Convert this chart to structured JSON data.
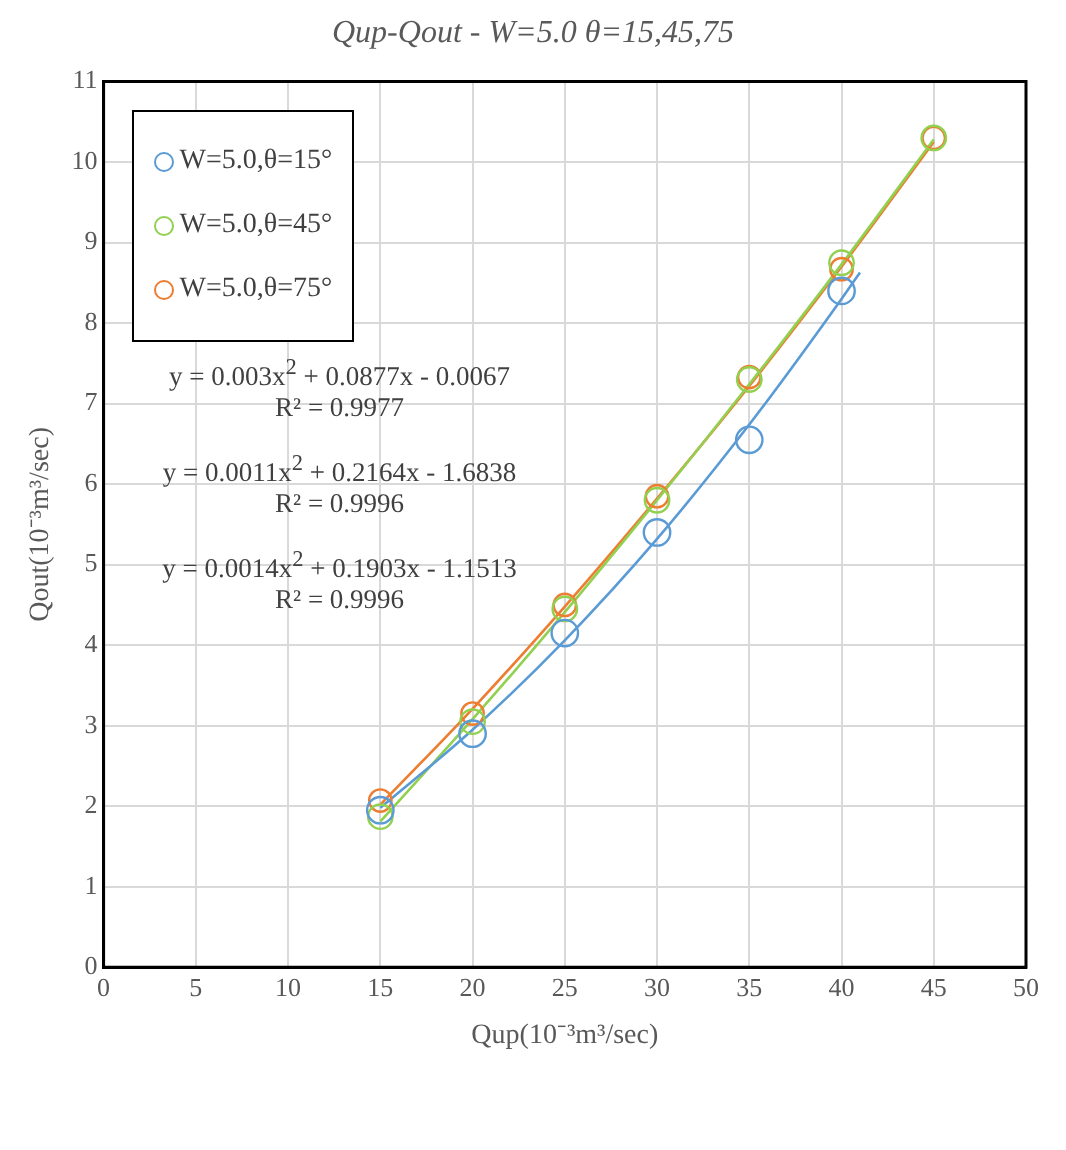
{
  "chart_data": {
    "type": "scatter",
    "title": "Qup-Qout - W=5.0 θ=15,45,75",
    "xlabel": "Qup(10⁻³m³/sec)",
    "ylabel": "Qout(10⁻³m³/sec)",
    "x": [
      15,
      20,
      25,
      30,
      35,
      40,
      45
    ],
    "series": [
      {
        "name": "W=5.0,θ=15°",
        "color": "#5b9bd5",
        "values": [
          1.95,
          2.9,
          4.15,
          5.4,
          6.55,
          8.4,
          null
        ]
      },
      {
        "name": "W=5.0,θ=45°",
        "color": "#92d050",
        "values": [
          1.87,
          3.05,
          4.45,
          5.8,
          7.3,
          8.75,
          10.3
        ]
      },
      {
        "name": "W=5.0,θ=75°",
        "color": "#ed7d31",
        "values": [
          2.07,
          3.15,
          4.5,
          5.85,
          7.33,
          8.67,
          10.3
        ]
      },
      {
        "type": "line",
        "marker": "none",
        "color": "#5b9bd5",
        "x": [
          15,
          20,
          25,
          30,
          35,
          40,
          41
        ],
        "values": [
          1.98,
          2.95,
          4.06,
          5.32,
          6.74,
          8.3,
          8.63
        ]
      },
      {
        "type": "line",
        "marker": "none",
        "color": "#92d050",
        "x": [
          15,
          20,
          25,
          30,
          35,
          40,
          45
        ],
        "values": [
          1.81,
          3.08,
          4.41,
          5.8,
          7.24,
          8.73,
          10.28
        ]
      },
      {
        "type": "line",
        "marker": "none",
        "color": "#ed7d31",
        "x": [
          15,
          20,
          25,
          30,
          35,
          40,
          45
        ],
        "values": [
          2.02,
          3.21,
          4.48,
          5.82,
          7.22,
          8.7,
          10.25
        ]
      }
    ],
    "annotations": [
      "y = 0.003x$^{2}$  + 0.0877x  - 0.0067",
      "R² = 0.9977",
      "y = 0.0011x$^{2}$  + 0.2164x  - 1.6838",
      "R² = 0.9996",
      "y = 0.0014x$^{2}$  + 0.1903x  - 1.1513",
      "R² = 0.9996"
    ],
    "xlim": [
      0,
      50
    ],
    "xticks": [
      0,
      5,
      10,
      15,
      20,
      25,
      30,
      35,
      40,
      45,
      50
    ],
    "ylim": [
      0,
      11
    ],
    "yticks": [
      0,
      1,
      2,
      3,
      4,
      5,
      6,
      7,
      8,
      9,
      10,
      11
    ],
    "grid": true,
    "legend": "top left",
    "marker": "circle"
  }
}
